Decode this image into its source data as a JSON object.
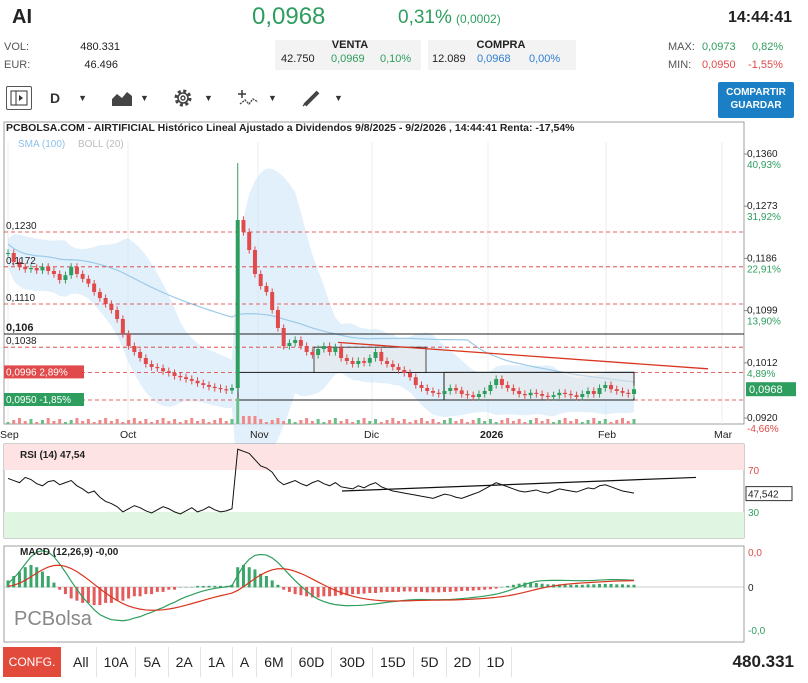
{
  "header": {
    "ticker": "AI",
    "price": "0,0968",
    "pct": "0,31%",
    "change": "(0,0002)",
    "time": "14:44:41"
  },
  "stats": {
    "vol_label": "VOL:",
    "vol_value": "480.331",
    "eur_label": "EUR:",
    "eur_value": "46.496",
    "max_label": "MAX:",
    "max_value": "0,0973",
    "max_pct": "0,82%",
    "min_label": "MIN:",
    "min_value": "0,0950",
    "min_pct": "-1,55%"
  },
  "quotes": {
    "sell_label": "VENTA",
    "sell_qty": "42.750",
    "sell_price": "0,0969",
    "sell_pct": "0,10%",
    "buy_label": "COMPRA",
    "buy_qty": "12.089",
    "buy_price": "0,0968",
    "buy_pct": "0,00%"
  },
  "toolbar": {
    "period": "D",
    "share_line1": "COMPARTIR",
    "share_line2": "GUARDAR",
    "share_color": "#1a7fc4"
  },
  "chart_data": [
    {
      "type": "candlestick",
      "title": "PCBOLSA.COM - AIRTIFICIAL Histórico Lineal Ajustado a Dividendos 9/8/2025 - 9/2/2026 , 14:44:41 Renta: -17,54%",
      "legend": [
        "SMA (100)",
        "BOLL (20)"
      ],
      "x_ticks": [
        "Sep",
        "Oct",
        "Nov",
        "Dic",
        "2026",
        "Feb",
        "Mar"
      ],
      "y_ticks": [
        {
          "v": "0,1360",
          "p": "40,93%"
        },
        {
          "v": "0,1273",
          "p": "31,92%"
        },
        {
          "v": "0,1186",
          "p": "22,91%"
        },
        {
          "v": "0,1099",
          "p": "13,90%"
        },
        {
          "v": "0,1012",
          "p": "4,89%"
        },
        {
          "v": "0,0920",
          "p": "-4,66%"
        }
      ],
      "ylim": [
        0.091,
        0.138
      ],
      "last_price": "0,0968",
      "levels": [
        {
          "value": 0.123,
          "label": "0,1230"
        },
        {
          "value": 0.1172,
          "label": "0,1172"
        },
        {
          "value": 0.111,
          "label": "0,1110"
        },
        {
          "value": 0.106,
          "label": "0,106"
        },
        {
          "value": 0.1038,
          "label": "0,1038"
        },
        {
          "value": 0.0996,
          "label": "0,0996",
          "pct": "2,89%"
        },
        {
          "value": 0.095,
          "label": "0,0950",
          "pct": "-1,85%"
        }
      ],
      "closes": [
        0.1195,
        0.118,
        0.1172,
        0.1168,
        0.117,
        0.1166,
        0.1172,
        0.1165,
        0.116,
        0.115,
        0.1158,
        0.1172,
        0.116,
        0.1152,
        0.1144,
        0.113,
        0.112,
        0.111,
        0.11,
        0.1085,
        0.106,
        0.104,
        0.103,
        0.102,
        0.101,
        0.1005,
        0.1003,
        0.0998,
        0.0995,
        0.099,
        0.0988,
        0.0985,
        0.0982,
        0.0978,
        0.0975,
        0.0972,
        0.097,
        0.0968,
        0.0966,
        0.097,
        0.125,
        0.123,
        0.12,
        0.116,
        0.114,
        0.113,
        0.11,
        0.107,
        0.104,
        0.1045,
        0.105,
        0.104,
        0.103,
        0.1025,
        0.1035,
        0.104,
        0.103,
        0.1038,
        0.102,
        0.1015,
        0.101,
        0.1015,
        0.1012,
        0.102,
        0.103,
        0.1015,
        0.101,
        0.1005,
        0.1,
        0.0995,
        0.0988,
        0.0975,
        0.097,
        0.0965,
        0.0962,
        0.096,
        0.0965,
        0.097,
        0.0966,
        0.096,
        0.0958,
        0.0955,
        0.096,
        0.0965,
        0.0975,
        0.0985,
        0.0975,
        0.097,
        0.0965,
        0.096,
        0.0958,
        0.0962,
        0.096,
        0.0957,
        0.0955,
        0.0958,
        0.0962,
        0.096,
        0.0958,
        0.0955,
        0.096,
        0.0965,
        0.096,
        0.097,
        0.0975,
        0.0968,
        0.0965,
        0.0962,
        0.096,
        0.0968
      ]
    },
    {
      "type": "line",
      "title": "RSI (14)",
      "value": "47,54",
      "last": "47,542",
      "ylim": [
        0,
        100
      ],
      "y_ticks": [
        "70",
        "30"
      ],
      "values": [
        62,
        60,
        58,
        63,
        61,
        57,
        55,
        59,
        60,
        56,
        58,
        60,
        55,
        52,
        48,
        50,
        44,
        40,
        38,
        35,
        30,
        33,
        36,
        34,
        31,
        29,
        32,
        35,
        33,
        30,
        28,
        31,
        34,
        30,
        32,
        35,
        32,
        30,
        31,
        33,
        90,
        88,
        86,
        80,
        74,
        72,
        68,
        60,
        56,
        58,
        60,
        57,
        55,
        58,
        60,
        57,
        55,
        58,
        54,
        53,
        52,
        55,
        53,
        56,
        58,
        54,
        52,
        50,
        49,
        48,
        47,
        46,
        45,
        44,
        43,
        45,
        47,
        46,
        44,
        43,
        45,
        47,
        49,
        52,
        55,
        58,
        56,
        54,
        52,
        50,
        49,
        50,
        51,
        49,
        48,
        50,
        52,
        51,
        50,
        49,
        51,
        53,
        52,
        55,
        56,
        54,
        52,
        50,
        49,
        48
      ]
    },
    {
      "type": "bar",
      "title": "MACD (12,26,9)",
      "value": "-0,00",
      "y_ticks": [
        "0,0",
        "0",
        "-0,0"
      ],
      "hist": [
        0.3,
        0.5,
        0.7,
        0.9,
        1.0,
        0.9,
        0.7,
        0.5,
        0.2,
        -0.1,
        -0.3,
        -0.5,
        -0.6,
        -0.7,
        -0.7,
        -0.8,
        -0.8,
        -0.7,
        -0.7,
        -0.6,
        -0.6,
        -0.5,
        -0.4,
        -0.4,
        -0.3,
        -0.3,
        -0.2,
        -0.2,
        -0.1,
        -0.1,
        0.0,
        0.0,
        0.0,
        0.05,
        0.05,
        0.05,
        0.05,
        0.05,
        0.05,
        0.1,
        0.9,
        1.0,
        0.9,
        0.8,
        0.6,
        0.5,
        0.3,
        0.1,
        -0.1,
        -0.2,
        -0.3,
        -0.35,
        -0.4,
        -0.45,
        -0.45,
        -0.4,
        -0.4,
        -0.38,
        -0.35,
        -0.35,
        -0.3,
        -0.3,
        -0.28,
        -0.25,
        -0.25,
        -0.22,
        -0.2,
        -0.2,
        -0.2,
        -0.18,
        -0.18,
        -0.2,
        -0.2,
        -0.22,
        -0.22,
        -0.22,
        -0.2,
        -0.2,
        -0.18,
        -0.16,
        -0.15,
        -0.14,
        -0.12,
        -0.1,
        -0.08,
        -0.05,
        0.0,
        0.05,
        0.1,
        0.15,
        0.2,
        0.2,
        0.18,
        0.15,
        0.12,
        0.12,
        0.12,
        0.1,
        0.1,
        0.1,
        0.1,
        0.12,
        0.12,
        0.14,
        0.14,
        0.14,
        0.12,
        0.12,
        0.1,
        0.1
      ]
    }
  ],
  "logo": "PCBolsa",
  "bottom": {
    "config": "CONFG.",
    "periods": [
      "All",
      "10A",
      "5A",
      "2A",
      "1A",
      "A",
      "6M",
      "60D",
      "30D",
      "15D",
      "5D",
      "2D",
      "1D"
    ],
    "volume": "480.331"
  }
}
